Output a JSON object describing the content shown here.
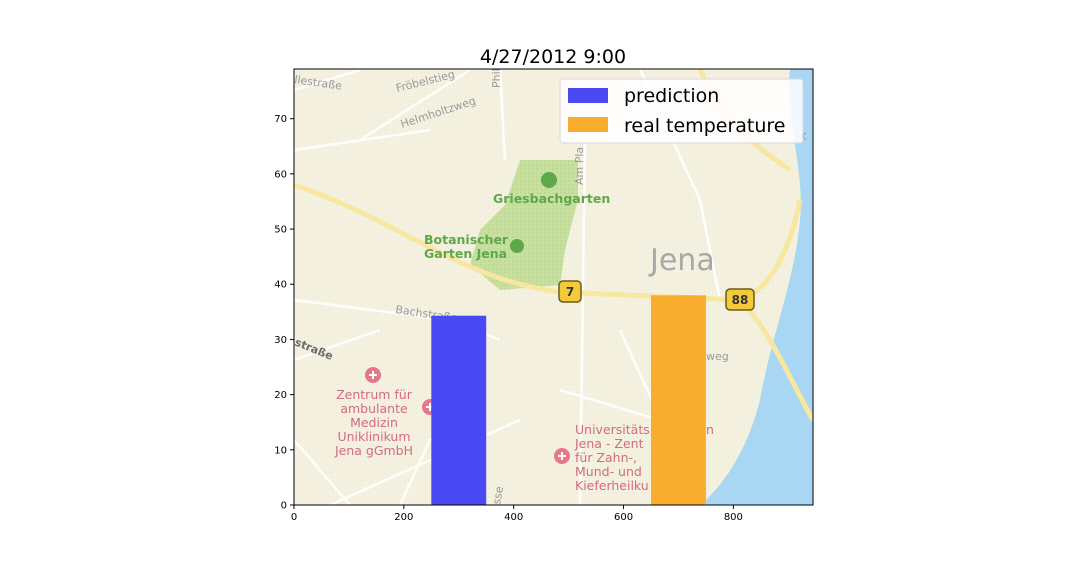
{
  "chart_data": {
    "type": "bar",
    "title": "4/27/2012 9:00",
    "xlabel": "",
    "ylabel": "",
    "xlim": [
      0,
      945
    ],
    "ylim": [
      0,
      79
    ],
    "xticks": [
      0,
      200,
      400,
      600,
      800
    ],
    "yticks": [
      0,
      10,
      20,
      30,
      40,
      50,
      60,
      70
    ],
    "bar_width": 100,
    "series": [
      {
        "name": "prediction",
        "x": 300,
        "value": 34.3,
        "color": "#4a4af5"
      },
      {
        "name": "real temperature",
        "x": 700,
        "value": 38.0,
        "color": "#f8ad2e"
      }
    ],
    "legend_position": "top-right",
    "grid": false
  },
  "background_map": {
    "city_label": "Jena",
    "place_labels": [
      "llestraße",
      "Fröbelstieg",
      "Helmholtzweg",
      "Phil",
      "Am Pla",
      "Griesbachgarten",
      "Botanischer",
      "Garten Jena",
      "Bachstraße",
      "straße",
      "Zentrum für",
      "ambulante",
      "Medizin",
      "Uniklinikum",
      "Jena gGmbH",
      "Universitäts",
      "n",
      "Jena - Zent",
      "für Zahn-,",
      "Mund- und",
      "Kieferheilku",
      "sse",
      "weg",
      "A"
    ],
    "road_shields": [
      "7",
      "88"
    ]
  }
}
